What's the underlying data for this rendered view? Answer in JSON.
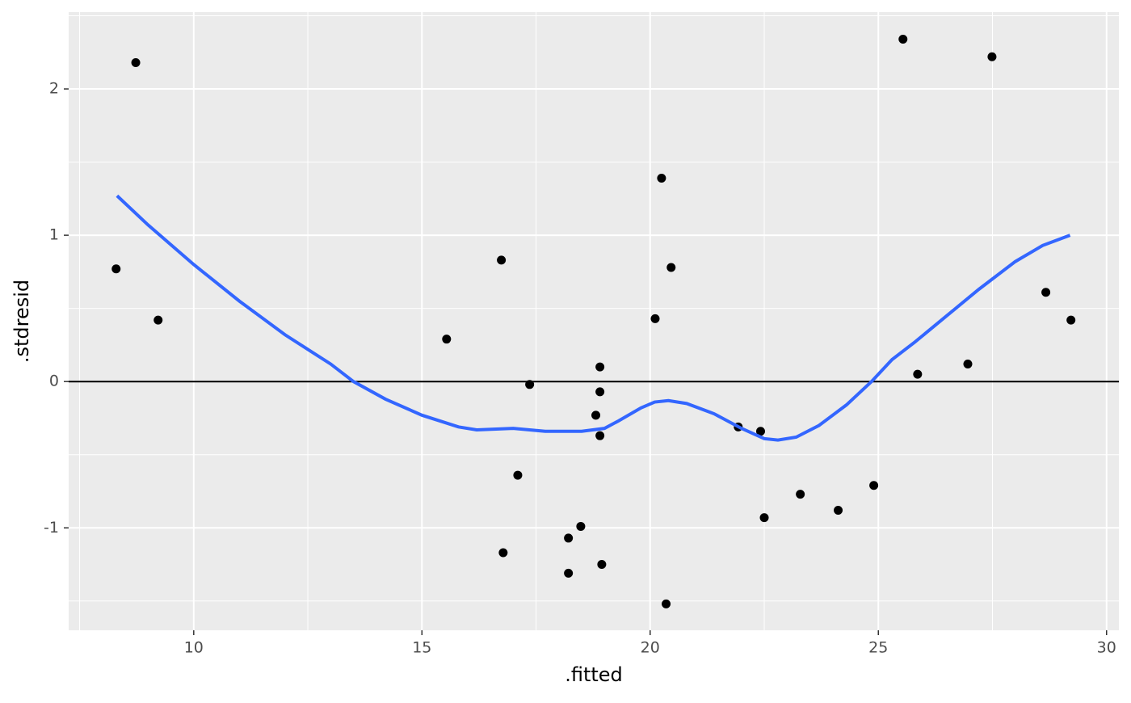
{
  "chart_data": {
    "type": "scatter",
    "x_label": ".fitted",
    "y_label": ".stdresid",
    "xlim": [
      7.26,
      30.27
    ],
    "ylim": [
      -1.7,
      2.525
    ],
    "xticks": [
      10,
      15,
      20,
      25,
      30
    ],
    "yticks": [
      -1,
      0,
      1,
      2
    ],
    "grid": true,
    "hline": 0,
    "point_color": "#000000",
    "x": [
      8.3,
      8.73,
      9.22,
      15.54,
      16.74,
      16.78,
      17.1,
      17.36,
      18.21,
      18.21,
      18.48,
      18.81,
      18.9,
      18.9,
      18.9,
      18.94,
      20.11,
      20.25,
      20.35,
      20.46,
      21.93,
      22.42,
      22.5,
      23.29,
      24.12,
      24.9,
      25.54,
      25.86,
      26.96,
      27.49,
      28.67,
      29.22
    ],
    "values": [
      0.77,
      2.18,
      0.42,
      0.29,
      0.83,
      -1.17,
      -0.64,
      -0.02,
      -1.07,
      -1.31,
      -0.99,
      -0.23,
      0.1,
      -0.07,
      -0.37,
      -1.25,
      0.43,
      1.39,
      -1.52,
      0.78,
      -0.31,
      -0.34,
      -0.93,
      -0.77,
      -0.88,
      -0.71,
      2.34,
      0.05,
      0.12,
      2.22,
      0.61,
      0.42
    ],
    "smooth": {
      "color": "#3366ff",
      "x": [
        8.32,
        9.0,
        10.0,
        11.0,
        12.0,
        13.0,
        13.5,
        14.2,
        15.0,
        15.8,
        16.2,
        17.0,
        17.7,
        18.5,
        19.0,
        19.3,
        19.8,
        20.1,
        20.4,
        20.8,
        21.4,
        22.0,
        22.5,
        22.8,
        23.2,
        23.7,
        24.3,
        24.85,
        25.3,
        25.8,
        26.5,
        27.2,
        28.0,
        28.6,
        29.2
      ],
      "values": [
        1.27,
        1.07,
        0.8,
        0.55,
        0.32,
        0.12,
        0.0,
        -0.12,
        -0.23,
        -0.31,
        -0.33,
        -0.32,
        -0.34,
        -0.34,
        -0.32,
        -0.27,
        -0.18,
        -0.14,
        -0.13,
        -0.15,
        -0.22,
        -0.32,
        -0.39,
        -0.4,
        -0.38,
        -0.3,
        -0.16,
        0.0,
        0.15,
        0.27,
        0.45,
        0.63,
        0.82,
        0.93,
        1.0
      ]
    }
  }
}
